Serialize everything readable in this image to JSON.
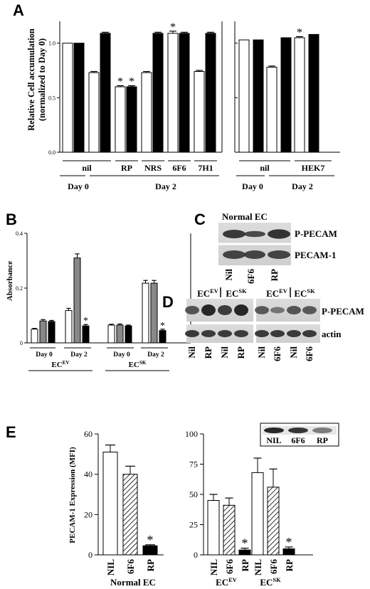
{
  "panels": {
    "A": {
      "letter": "A",
      "ylabel_line1": "Relative Cell accumulation",
      "ylabel_line2": "(normalized to Day 0)",
      "yticks": [
        "0.0",
        "0.5",
        "1.0"
      ],
      "group_labels_left": [
        "nil",
        "RP",
        "NRS",
        "6F6",
        "7H1"
      ],
      "day_labels_left": [
        "Day 0",
        "Day 2"
      ],
      "group_labels_right": [
        "nil",
        "HEK7"
      ],
      "day_labels_right": [
        "Day 0",
        "Day 2"
      ],
      "star": "*"
    },
    "B": {
      "letter": "B",
      "ylabel": "Absorbance",
      "yticks": [
        "0",
        "0.2",
        "0.4"
      ],
      "day_labels": [
        "Day 0",
        "Day 2",
        "Day 0",
        "Day 2"
      ],
      "group_labels": [
        {
          "base": "EC",
          "sup": "EV"
        },
        {
          "base": "EC",
          "sup": "SK"
        }
      ],
      "star": "*"
    },
    "C": {
      "letter": "C",
      "title": "Normal EC",
      "band_labels": [
        "P-PECAM",
        "PECAM-1"
      ],
      "lane_labels": [
        "Nil",
        "6F6",
        "RP"
      ]
    },
    "D": {
      "letter": "D",
      "header_groups": [
        {
          "base": "EC",
          "sup": "EV"
        },
        {
          "base": "EC",
          "sup": "SK"
        },
        {
          "base": "EC",
          "sup": "EV"
        },
        {
          "base": "EC",
          "sup": "SK"
        }
      ],
      "band_labels": [
        "P-PECAM",
        "actin"
      ],
      "lane_labels_left": [
        "Nil",
        "RP",
        "Nil",
        "RP"
      ],
      "lane_labels_right": [
        "Nil",
        "6F6",
        "Nil",
        "6F6"
      ]
    },
    "E": {
      "letter": "E",
      "ylabel": "PECAM-1 Expression (MFI)",
      "yticks_left": [
        "0",
        "20",
        "40",
        "60"
      ],
      "yticks_right": [
        "0",
        "25",
        "50",
        "75",
        "100"
      ],
      "bar_labels": [
        "NIL",
        "6F6",
        "RP"
      ],
      "group_labels": [
        {
          "base": "Normal EC",
          "sup": ""
        },
        {
          "base": "EC",
          "sup": "EV"
        },
        {
          "base": "EC",
          "sup": "SK"
        }
      ],
      "inset_labels": [
        "NIL",
        "6F6",
        "RP"
      ],
      "star": "*"
    }
  },
  "chart_data": [
    {
      "type": "bar",
      "panel": "A-left",
      "ylabel": "Relative Cell accumulation (normalized to Day 0)",
      "ylim": [
        0,
        1.2
      ],
      "categories": [
        "nil Day 0",
        "nil Day 2",
        "RP",
        "NRS",
        "6F6",
        "7H1"
      ],
      "series": [
        {
          "name": "",
          "color": "#ffffff",
          "values": [
            1.0,
            0.73,
            0.6,
            0.73,
            1.09,
            0.74
          ],
          "errors": [
            0,
            0.01,
            0.01,
            0.01,
            0.02,
            0.01
          ],
          "significant": [
            false,
            false,
            true,
            false,
            true,
            false
          ]
        },
        {
          "name": "",
          "color": "#000000",
          "values": [
            1.0,
            1.09,
            0.6,
            1.09,
            1.09,
            1.09
          ],
          "errors": [
            0,
            0.01,
            0.01,
            0.01,
            0.01,
            0.01
          ],
          "significant": [
            false,
            false,
            true,
            false,
            false,
            false
          ]
        }
      ]
    },
    {
      "type": "bar",
      "panel": "A-right",
      "ylim": [
        0,
        1.2
      ],
      "categories": [
        "nil Day 0",
        "nil Day 2",
        "HEK7"
      ],
      "series": [
        {
          "name": "",
          "color": "#ffffff",
          "values": [
            1.03,
            0.78,
            1.05
          ],
          "errors": [
            0,
            0.01,
            0.01
          ],
          "significant": [
            false,
            false,
            true
          ]
        },
        {
          "name": "",
          "color": "#000000",
          "values": [
            1.03,
            1.05,
            1.08
          ],
          "errors": [
            0,
            0,
            0
          ],
          "significant": [
            false,
            false,
            false
          ]
        }
      ]
    },
    {
      "type": "bar",
      "panel": "B",
      "ylabel": "Absorbance",
      "ylim": [
        0,
        0.4
      ],
      "categories": [
        "EC-EV Day 0",
        "EC-EV Day 2",
        "EC-SK Day 0",
        "EC-SK Day 2"
      ],
      "series": [
        {
          "name": "",
          "color": "#ffffff",
          "values": [
            0.05,
            0.118,
            0.065,
            0.218
          ],
          "errors": [
            0.003,
            0.008,
            0.003,
            0.01
          ],
          "significant": [
            false,
            false,
            false,
            false
          ]
        },
        {
          "name": "",
          "color": "#888888",
          "values": [
            0.08,
            0.31,
            0.065,
            0.218
          ],
          "errors": [
            0.005,
            0.015,
            0.004,
            0.01
          ],
          "significant": [
            false,
            false,
            false,
            false
          ]
        },
        {
          "name": "",
          "color": "#000000",
          "values": [
            0.078,
            0.062,
            0.062,
            0.045
          ],
          "errors": [
            0.004,
            0.005,
            0.003,
            0.005
          ],
          "significant": [
            false,
            true,
            false,
            true
          ]
        }
      ]
    },
    {
      "type": "bar",
      "panel": "E-left",
      "ylabel": "PECAM-1 Expression (MFI)",
      "ylim": [
        0,
        60
      ],
      "categories": [
        "NIL",
        "6F6",
        "RP"
      ],
      "group": "Normal EC",
      "values": [
        51,
        40,
        4.5
      ],
      "errors": [
        3.5,
        4,
        0.5
      ],
      "patterns": [
        "white",
        "hatched",
        "black"
      ],
      "significant": [
        false,
        false,
        true
      ]
    },
    {
      "type": "bar",
      "panel": "E-right",
      "ylim": [
        0,
        100
      ],
      "groups": [
        "EC EV",
        "EC SK"
      ],
      "categories": [
        "NIL",
        "6F6",
        "RP"
      ],
      "series": [
        {
          "name": "",
          "values": [
            45,
            41,
            4
          ],
          "errors": [
            5,
            6,
            1.5
          ],
          "significant": [
            false,
            false,
            true
          ]
        },
        {
          "name": "",
          "values": [
            68,
            56,
            5
          ],
          "errors": [
            12,
            15,
            1.5
          ],
          "significant": [
            false,
            false,
            true
          ]
        }
      ]
    }
  ]
}
